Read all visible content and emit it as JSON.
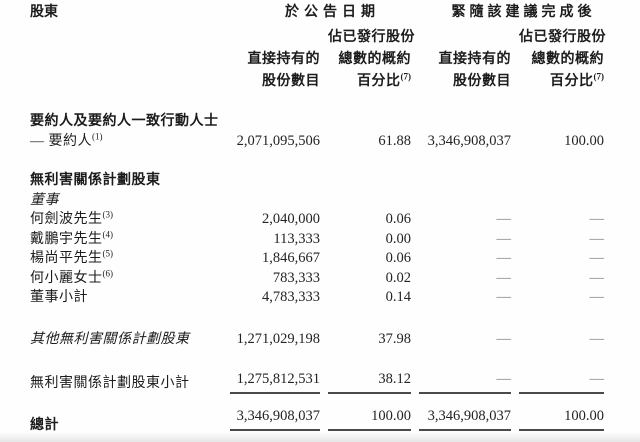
{
  "document": {
    "col1_header": "股東",
    "group1": "於公告日期",
    "group2": "緊隨該建議完成後",
    "subheader": {
      "direct_l1": "直接持有的",
      "direct_l2": "股份數目",
      "pct_l1": "佔已發行股份",
      "pct_l2": "總數的概約",
      "pct_l3": "百分比",
      "pct_sup": "(7)"
    },
    "rows": [
      {
        "label": "要約人及要約人一致行動人士",
        "sup": "",
        "v1": "",
        "p1": "",
        "v2": "",
        "p2": ""
      },
      {
        "label": "— 要約人",
        "sup": "(1)",
        "v1": "2,071,095,506",
        "p1": "61.88",
        "v2": "3,346,908,037",
        "p2": "100.00"
      },
      {
        "label": "無利害關係計劃股東",
        "sup": "",
        "v1": "",
        "p1": "",
        "v2": "",
        "p2": ""
      },
      {
        "label": "董事",
        "sup": "",
        "v1": "",
        "p1": "",
        "v2": "",
        "p2": ""
      },
      {
        "label": "何劍波先生",
        "sup": "(3)",
        "v1": "2,040,000",
        "p1": "0.06",
        "v2": "—",
        "p2": "—"
      },
      {
        "label": "戴鵬宇先生",
        "sup": "(4)",
        "v1": "113,333",
        "p1": "0.00",
        "v2": "—",
        "p2": "—"
      },
      {
        "label": "楊尚平先生",
        "sup": "(5)",
        "v1": "1,846,667",
        "p1": "0.06",
        "v2": "—",
        "p2": "—"
      },
      {
        "label": "何小麗女士",
        "sup": "(6)",
        "v1": "783,333",
        "p1": "0.02",
        "v2": "—",
        "p2": "—"
      },
      {
        "label": "董事小計",
        "sup": "",
        "v1": "4,783,333",
        "p1": "0.14",
        "v2": "—",
        "p2": "—"
      },
      {
        "label": "其他無利害關係計劃股東",
        "sup": "",
        "v1": "1,271,029,198",
        "p1": "37.98",
        "v2": "—",
        "p2": "—"
      },
      {
        "label": "無利害關係計劃股東小計",
        "sup": "",
        "v1": "1,275,812,531",
        "p1": "38.12",
        "v2": "—",
        "p2": "—"
      },
      {
        "label": "總計",
        "sup": "",
        "v1": "3,346,908,037",
        "p1": "100.00",
        "v2": "3,346,908,037",
        "p2": "100.00"
      }
    ]
  },
  "colors": {
    "background": "#fefefe",
    "text": "#1c1c1c",
    "dash": "#828282",
    "rule": "#4a4a4a"
  }
}
